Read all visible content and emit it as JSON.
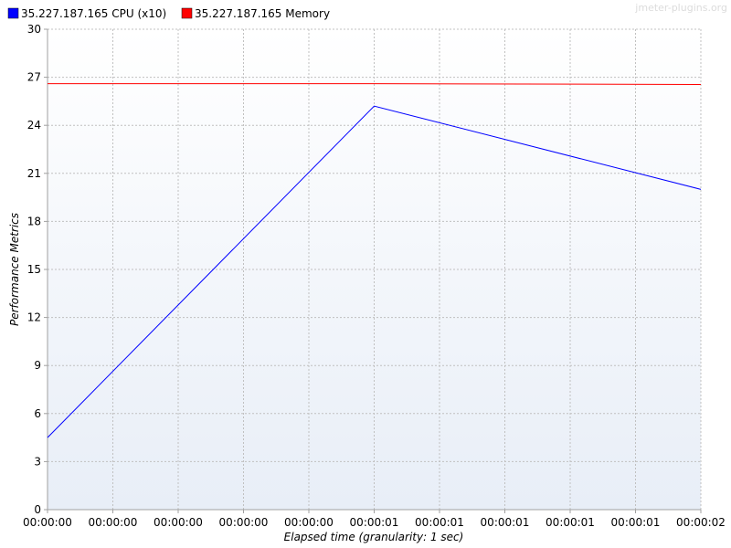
{
  "watermark": "jmeter-plugins.org",
  "colors": {
    "plot_top": "#ffffff",
    "plot_bottom": "#e8eef7",
    "grid": "#c0c0c0",
    "axis": "#a0a0a0"
  },
  "chart_data": {
    "type": "line",
    "xlabel": "Elapsed time (granularity: 1 sec)",
    "ylabel": "Performance Metrics",
    "ylim": [
      0,
      30
    ],
    "y_ticks": [
      0,
      3,
      6,
      9,
      12,
      15,
      18,
      21,
      24,
      27,
      30
    ],
    "xlim": [
      0,
      2
    ],
    "x_ticks": [
      {
        "value": 0.0,
        "label": "00:00:00"
      },
      {
        "value": 0.2,
        "label": "00:00:00"
      },
      {
        "value": 0.4,
        "label": "00:00:00"
      },
      {
        "value": 0.6,
        "label": "00:00:00"
      },
      {
        "value": 0.8,
        "label": "00:00:00"
      },
      {
        "value": 1.0,
        "label": "00:00:01"
      },
      {
        "value": 1.2,
        "label": "00:00:01"
      },
      {
        "value": 1.4,
        "label": "00:00:01"
      },
      {
        "value": 1.6,
        "label": "00:00:01"
      },
      {
        "value": 1.8,
        "label": "00:00:01"
      },
      {
        "value": 2.0,
        "label": "00:00:02"
      }
    ],
    "grid": true,
    "legend_position": "top-left",
    "series": [
      {
        "name": "35.227.187.165 CPU (x10)",
        "color": "#0000ff",
        "x": [
          0,
          1,
          2
        ],
        "y": [
          4.5,
          25.2,
          20.0
        ]
      },
      {
        "name": "35.227.187.165 Memory",
        "color": "#ff0000",
        "x": [
          0,
          1,
          2
        ],
        "y": [
          26.6,
          26.6,
          26.55
        ]
      }
    ]
  }
}
